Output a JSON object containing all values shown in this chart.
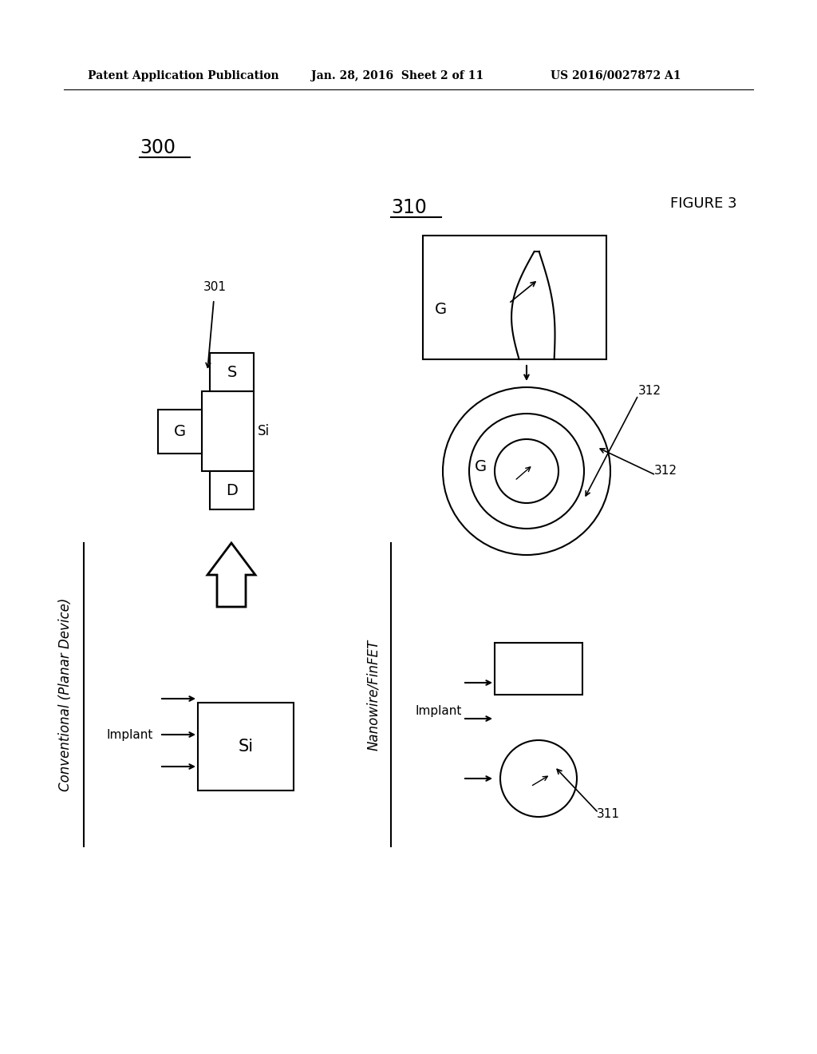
{
  "bg_color": "#ffffff",
  "header_left": "Patent Application Publication",
  "header_mid": "Jan. 28, 2016  Sheet 2 of 11",
  "header_right": "US 2016/0027872 A1",
  "figure_label": "FIGURE 3",
  "label_300": "300",
  "label_310": "310",
  "label_301": "301",
  "label_311": "311",
  "label_312a": "312",
  "label_312b": "312",
  "conv_label": "Conventional (Planar Device)",
  "nano_label": "Nanowire/FinFET",
  "implant_label": "Implant",
  "implant_label2": "Implant",
  "si_label": "Si",
  "g_label": "G",
  "s_label": "S",
  "d_label": "D",
  "si_label2": "Si"
}
